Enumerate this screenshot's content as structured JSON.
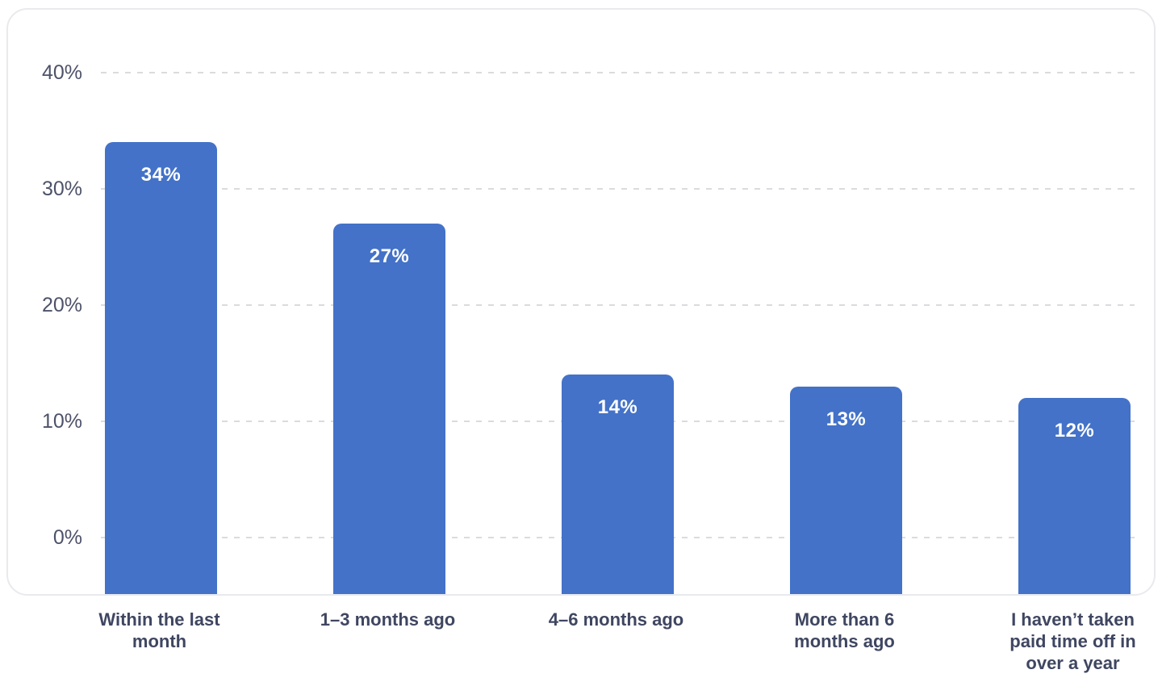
{
  "chart_data": {
    "type": "bar",
    "title": "",
    "xlabel": "",
    "ylabel": "",
    "categories": [
      "Within the last\nmonth",
      "1–3 months ago",
      "4–6 months ago",
      "More than 6\nmonths ago",
      "I haven’t taken\npaid time off in\nover a year"
    ],
    "values": [
      34,
      27,
      14,
      13,
      12
    ],
    "value_labels": [
      "34%",
      "27%",
      "14%",
      "13%",
      "12%"
    ],
    "y_ticks": [
      {
        "value": 0,
        "label": "0%"
      },
      {
        "value": 10,
        "label": "10%"
      },
      {
        "value": 20,
        "label": "20%"
      },
      {
        "value": 30,
        "label": "30%"
      },
      {
        "value": 40,
        "label": "40%"
      }
    ],
    "ylim": [
      -5,
      42
    ],
    "grid": "horizontal-dashed",
    "legend": "none",
    "bar_corner": "rounded-top",
    "colors": {
      "bar": "#4372c8",
      "bar_label": "#ffffff",
      "axis_text": "#4d5269",
      "category_text": "#3f4661",
      "gridline": "#dbdbdf",
      "card_border": "#e9eaee",
      "background": "#ffffff"
    }
  }
}
